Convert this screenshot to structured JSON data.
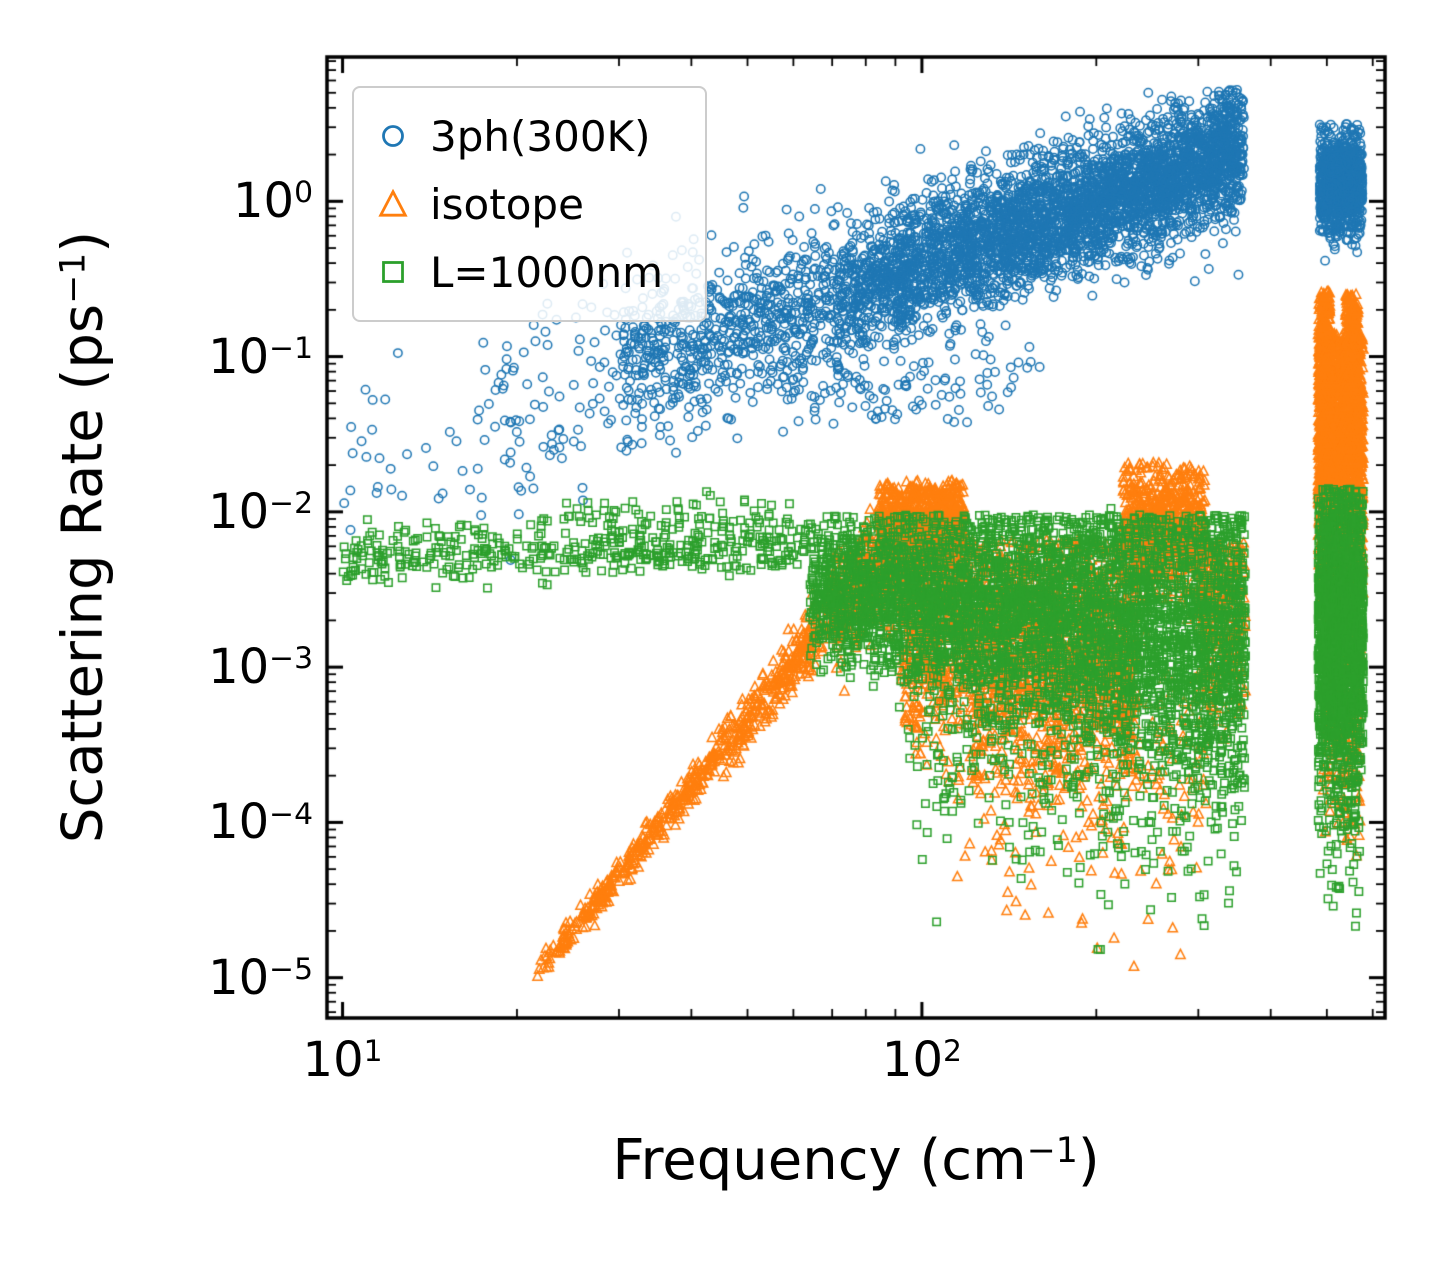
{
  "figure": {
    "background": "#ffffff",
    "text_color": "#000000"
  },
  "chart_data": {
    "type": "scatter",
    "title": "",
    "xlabel": {
      "text": "Frequency (cm",
      "sup": "−1",
      "close": ")"
    },
    "ylabel": {
      "text": "Scattering Rate (ps",
      "sup": "−1",
      "close": ")"
    },
    "x_scale": "log",
    "y_scale": "log",
    "xlim": [
      9.4,
      630
    ],
    "ylim": [
      5.5e-06,
      8.5
    ],
    "x_tick_values": [
      10,
      100
    ],
    "y_tick_values": [
      1,
      0.1,
      0.01,
      0.001,
      0.0001,
      1e-05
    ],
    "grid": false,
    "legend_position": "upper left",
    "bands_format": "x0,x1: x range (cm^-1); c0,c1: log10(y) band center at x0 and x1; s0,s1: log10 std dev; n: point count; bias: x sampling exponent (<1 biases to high x); cmax: log10(y) upper cap",
    "series": [
      {
        "name": "3ph(300K)",
        "marker": "circle",
        "color": "#1f77b4",
        "bands": [
          {
            "x0": 10,
            "x1": 18,
            "c0": -1.68,
            "c1": -1.5,
            "s0": 0.3,
            "n": 30
          },
          {
            "x0": 17,
            "x1": 30,
            "c0": -1.5,
            "c1": -1.1,
            "s0": 0.33,
            "n": 90
          },
          {
            "x0": 30,
            "x1": 70,
            "c0": -1.05,
            "c1": -0.62,
            "s0": 0.27,
            "n": 700
          },
          {
            "x0": 70,
            "x1": 360,
            "c0": -0.62,
            "c1": 0.33,
            "s0": 0.23,
            "s1": 0.2,
            "n": 3900,
            "bias": 0.8,
            "cmax": 0.72
          },
          {
            "x0": 55,
            "x1": 160,
            "c0": -1.35,
            "c1": -1.1,
            "s0": 0.15,
            "n": 90
          },
          {
            "x0": 486,
            "x1": 576,
            "c0": 0.14,
            "c1": 0.14,
            "s0": 0.15,
            "n": 850,
            "cmax": 0.5
          },
          {
            "x0": 492,
            "x1": 570,
            "c0": -0.12,
            "c1": -0.12,
            "s0": 0.08,
            "n": 70
          }
        ]
      },
      {
        "name": "isotope",
        "marker": "triangle",
        "color": "#ff7f0e",
        "bands": [
          {
            "x0": 21.5,
            "x1": 72,
            "c0": -4.99,
            "c1": -2.62,
            "s0": 0.035,
            "s1": 0.1,
            "n": 650,
            "bias": 0.8
          },
          {
            "x0": 70,
            "x1": 92,
            "c0": -2.62,
            "c1": -2.3,
            "s0": 0.16,
            "n": 450
          },
          {
            "x0": 84,
            "x1": 118,
            "c0": -2.12,
            "c1": -2.1,
            "s0": 0.16,
            "n": 1000,
            "cmax": -1.8
          },
          {
            "x0": 92,
            "x1": 235,
            "c0": -2.7,
            "c1": -2.95,
            "s0": 0.38,
            "n": 1900,
            "cmax": -2.18
          },
          {
            "x0": 115,
            "x1": 310,
            "c0": -3.6,
            "c1": -3.7,
            "s0": 0.38,
            "n": 260
          },
          {
            "x0": 140,
            "x1": 310,
            "c0": -4.35,
            "c1": -4.35,
            "s0": 0.25,
            "n": 14
          },
          {
            "x0": 222,
            "x1": 308,
            "c0": -2.1,
            "c1": -2.12,
            "s0": 0.2,
            "n": 800,
            "cmax": -1.68
          },
          {
            "x0": 300,
            "x1": 362,
            "c0": -2.55,
            "c1": -2.6,
            "s0": 0.33,
            "n": 350,
            "cmax": -2.2
          },
          {
            "x0": 483,
            "x1": 578,
            "c0": -1.6,
            "c1": -1.6,
            "s0": 0.45,
            "n": 1700,
            "cmax": -0.85
          },
          {
            "x0": 484,
            "x1": 506,
            "c0": -1.0,
            "c1": -1.0,
            "s0": 0.24,
            "n": 350,
            "cmax": -0.58
          },
          {
            "x0": 538,
            "x1": 566,
            "c0": -1.0,
            "c1": -1.0,
            "s0": 0.24,
            "n": 350,
            "cmax": -0.6
          },
          {
            "x0": 490,
            "x1": 572,
            "c0": -3.1,
            "c1": -3.1,
            "s0": 0.55,
            "n": 300
          }
        ]
      },
      {
        "name": "L=1000nm",
        "marker": "square",
        "color": "#2ca02c",
        "bands": [
          {
            "x0": 10,
            "x1": 64,
            "c0": -2.28,
            "c1": -2.22,
            "s0": 0.09,
            "n": 420
          },
          {
            "x0": 22,
            "x1": 64,
            "c0": -2.02,
            "c1": -2.0,
            "s0": 0.07,
            "n": 70
          },
          {
            "x0": 64,
            "x1": 362,
            "c0": -2.5,
            "c1": -2.8,
            "s0": 0.22,
            "s1": 0.5,
            "n": 4300,
            "bias": 0.85,
            "cmax": -2.02
          },
          {
            "x0": 95,
            "x1": 360,
            "c0": -3.5,
            "c1": -3.6,
            "s0": 0.42,
            "n": 380
          },
          {
            "x0": 130,
            "x1": 300,
            "c0": -4.3,
            "c1": -4.3,
            "s0": 0.28,
            "n": 10
          },
          {
            "x0": 200,
            "x1": 215,
            "c0": -4.82,
            "c1": -4.82,
            "s0": 0.05,
            "n": 2
          },
          {
            "x0": 483,
            "x1": 578,
            "c0": -2.75,
            "c1": -2.75,
            "s0": 0.5,
            "n": 1700,
            "cmax": -1.85
          },
          {
            "x0": 500,
            "x1": 570,
            "c0": -4.0,
            "c1": -4.0,
            "s0": 0.3,
            "n": 60
          }
        ]
      }
    ]
  }
}
